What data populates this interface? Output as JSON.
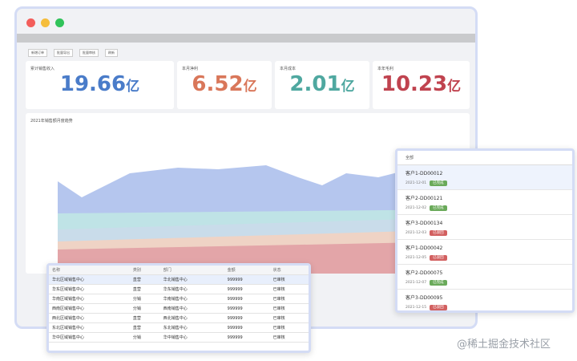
{
  "kpis": [
    {
      "label": "累计销售收入",
      "value": "19.66",
      "unit": "亿"
    },
    {
      "label": "本月净利",
      "value": "6.52",
      "unit": "亿"
    },
    {
      "label": "本月成本",
      "value": "2.01",
      "unit": "亿"
    },
    {
      "label": "本年毛利",
      "value": "10.23",
      "unit": "亿"
    }
  ],
  "toolbar": [
    "新增订单",
    "批量导出",
    "批量审核",
    "刷新"
  ],
  "chart": {
    "title": "2021年销售额月度趋势"
  },
  "table": {
    "headers": [
      "名称",
      "类别",
      "部门",
      "金额",
      "状态"
    ],
    "rows": [
      [
        "华北区域销售中心",
        "直营",
        "华北销售中心",
        "999999",
        "已审核"
      ],
      [
        "华东区域销售中心",
        "直营",
        "华东销售中心",
        "999999",
        "已审核"
      ],
      [
        "华南区域销售中心",
        "分销",
        "华南销售中心",
        "999999",
        "已审核"
      ],
      [
        "西南区域销售中心",
        "分销",
        "西南销售中心",
        "999999",
        "已审核"
      ],
      [
        "西北区域销售中心",
        "直营",
        "西北销售中心",
        "999999",
        "已审核"
      ],
      [
        "东北区域销售中心",
        "直营",
        "东北销售中心",
        "999999",
        "已审核"
      ],
      [
        "华中区域销售中心",
        "分销",
        "华中销售中心",
        "999999",
        "已审核"
      ]
    ]
  },
  "orders": {
    "header": "全部",
    "items": [
      {
        "title": "客户1-DD00012",
        "date": "2021-12-01",
        "status": "已完成"
      },
      {
        "title": "客户2-DD00121",
        "date": "2021-12-02",
        "status": "已完成"
      },
      {
        "title": "客户3-DD00134",
        "date": "2021-12-03",
        "status": "已驳回"
      },
      {
        "title": "客户1-DD00042",
        "date": "2021-12-05",
        "status": "已驳回"
      },
      {
        "title": "客户2-DD00075",
        "date": "2021-12-07",
        "status": "已完成"
      },
      {
        "title": "客户3-DD00095",
        "date": "2021-12-15",
        "status": "已驳回"
      }
    ]
  },
  "watermark": "@稀土掘金技术社区"
}
